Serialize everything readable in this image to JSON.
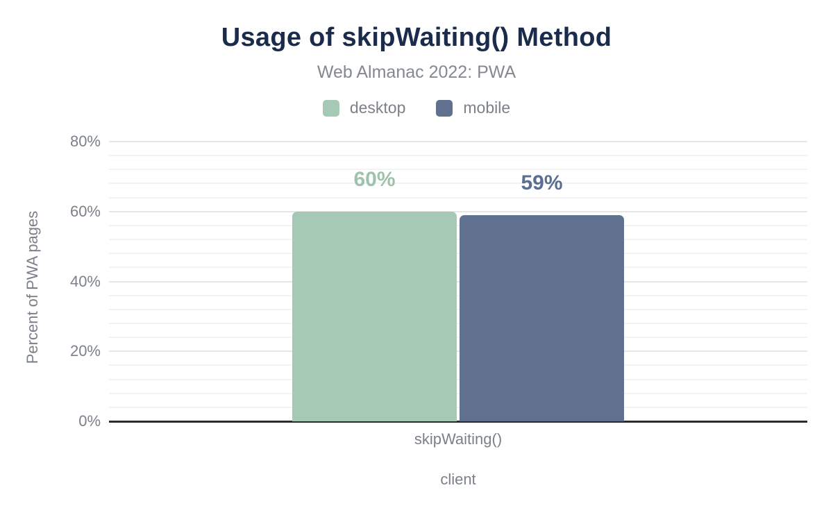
{
  "chart_data": {
    "type": "bar",
    "title": "Usage of skipWaiting() Method",
    "subtitle": "Web Almanac 2022: PWA",
    "categories": [
      "skipWaiting()"
    ],
    "series": [
      {
        "name": "desktop",
        "values": [
          60
        ],
        "data_labels": [
          "60%"
        ],
        "color": "#a6c9b6",
        "label_color": "#9dc3ad"
      },
      {
        "name": "mobile",
        "values": [
          59
        ],
        "data_labels": [
          "59%"
        ],
        "color": "#5f718e",
        "label_color": "#5a6e90"
      }
    ],
    "xlabel": "client",
    "ylabel": "Percent of PWA pages",
    "ylim": [
      0,
      80
    ],
    "y_ticks": [
      {
        "value": 0,
        "label": "0%"
      },
      {
        "value": 20,
        "label": "20%"
      },
      {
        "value": 40,
        "label": "40%"
      },
      {
        "value": 60,
        "label": "60%"
      },
      {
        "value": 80,
        "label": "80%"
      }
    ],
    "minor_grid_step": 4,
    "major_grid_step": 20,
    "grid": true,
    "legend_position": "top"
  },
  "colors": {
    "background": "#ffffff",
    "title_text": "#1b2b4b",
    "muted_text": "#7b8089",
    "subtitle_text": "#85898f",
    "axis_line": "#2b2b2b",
    "major_gridline": "#e6e6e6",
    "minor_gridline": "#f3f3f3"
  }
}
